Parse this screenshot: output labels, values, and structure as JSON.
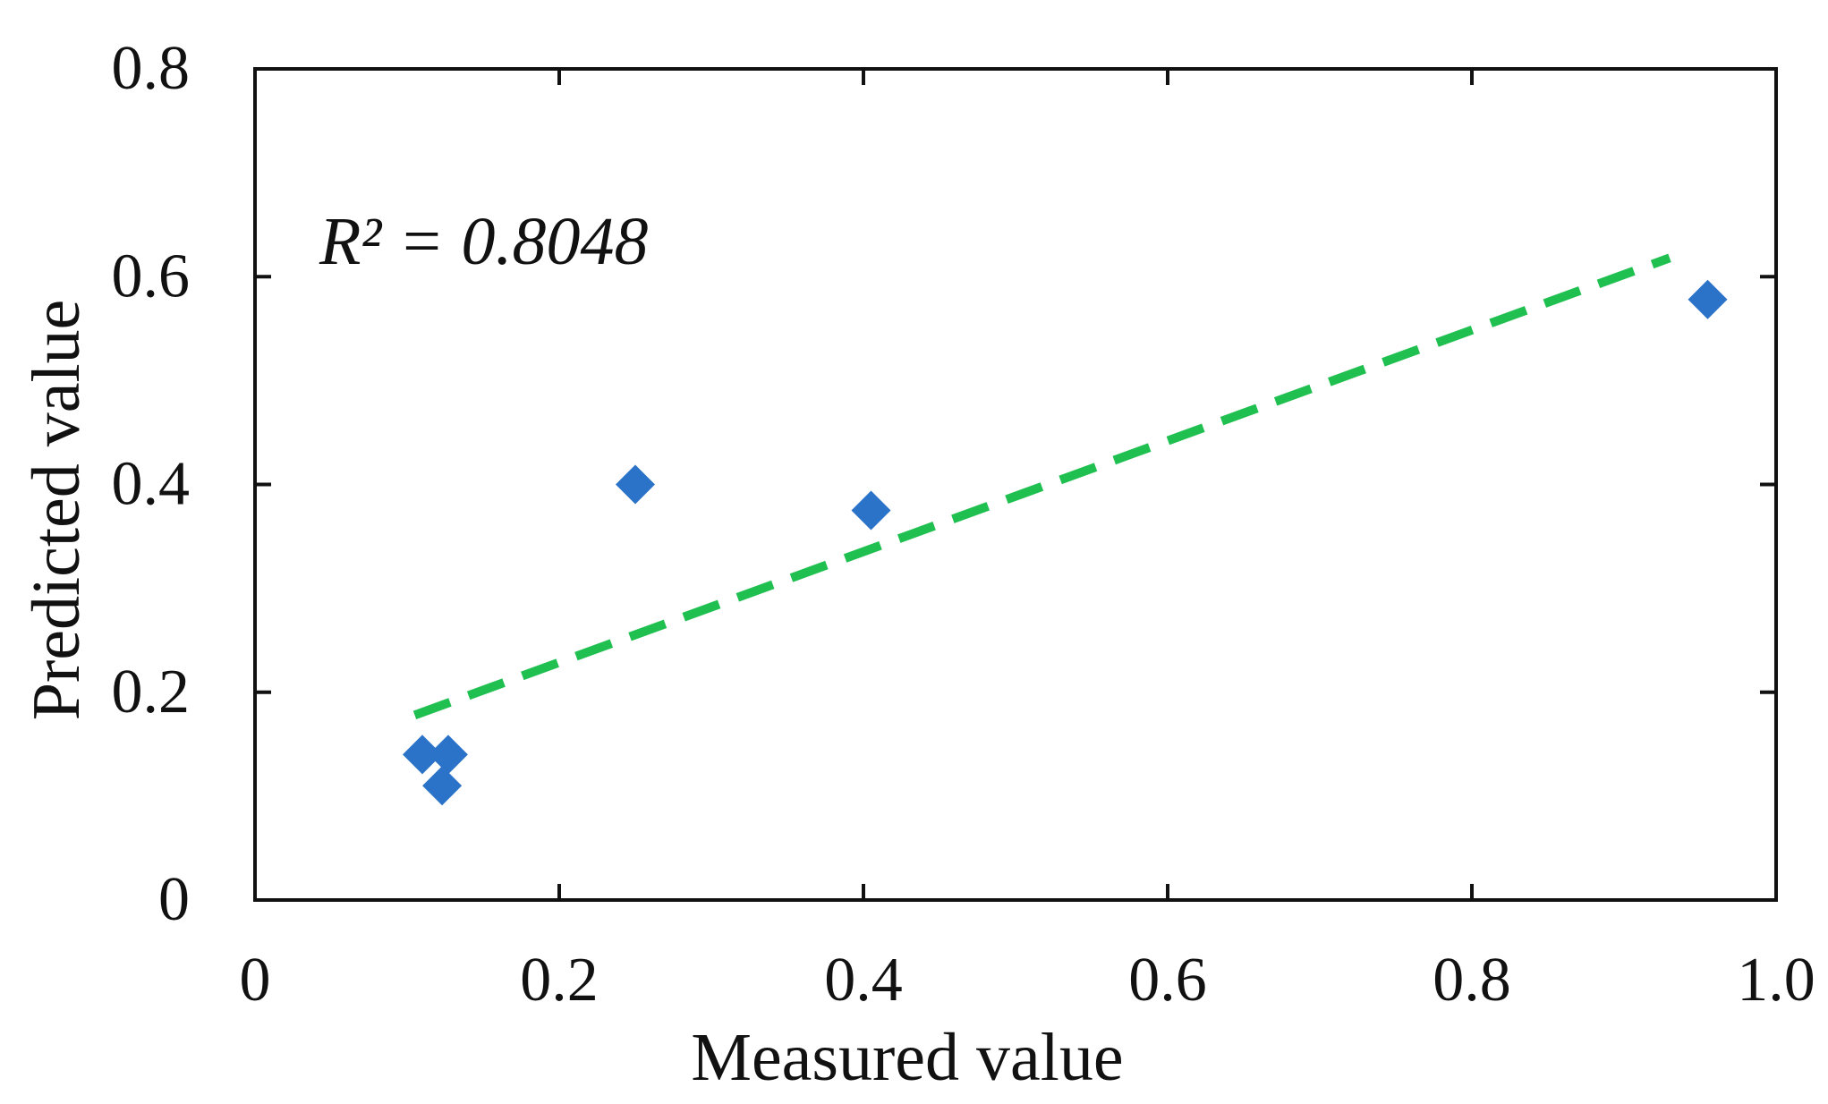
{
  "chart_data": {
    "type": "scatter",
    "title": "",
    "xlabel": "Measured value",
    "ylabel": "Predicted  value",
    "xlim": [
      0,
      1.0
    ],
    "ylim": [
      0,
      0.8
    ],
    "x_ticks": [
      0,
      0.2,
      0.4,
      0.6,
      0.8,
      1.0
    ],
    "x_tick_labels": [
      "0",
      "0.2",
      "0.4",
      "0.6",
      "0.8",
      "1.0"
    ],
    "y_ticks": [
      0,
      0.2,
      0.4,
      0.6,
      0.8
    ],
    "y_tick_labels": [
      "0",
      "0.2",
      "0.4",
      "0.6",
      "0.8"
    ],
    "grid": false,
    "series": [
      {
        "name": "data",
        "marker": "diamond",
        "color": "#2b73c8",
        "points": [
          {
            "x": 0.11,
            "y": 0.14
          },
          {
            "x": 0.127,
            "y": 0.14
          },
          {
            "x": 0.123,
            "y": 0.11
          },
          {
            "x": 0.25,
            "y": 0.4
          },
          {
            "x": 0.405,
            "y": 0.375
          },
          {
            "x": 0.955,
            "y": 0.578
          }
        ]
      }
    ],
    "trendline": {
      "style": "dashed",
      "color": "#1fbf50",
      "x": [
        0.105,
        0.93
      ],
      "y": [
        0.178,
        0.618
      ]
    },
    "annotation": {
      "text": "R² = 0.8048"
    }
  }
}
